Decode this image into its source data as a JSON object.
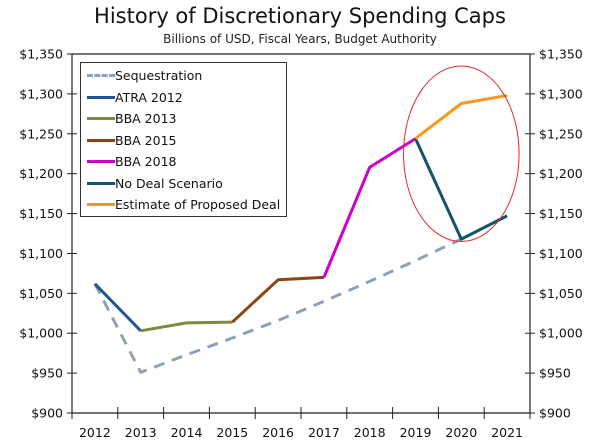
{
  "chart_data": {
    "type": "line",
    "title": "History of Discretionary Spending Caps",
    "subtitle": "Billions of USD, Fiscal Years, Budget Authority",
    "xlabel": "",
    "ylabel": "",
    "categories": [
      "2012",
      "2013",
      "2014",
      "2015",
      "2016",
      "2017",
      "2018",
      "2019",
      "2020",
      "2021"
    ],
    "ylim": [
      900,
      1350
    ],
    "yticks": [
      900,
      950,
      1000,
      1050,
      1100,
      1150,
      1200,
      1250,
      1300,
      1350
    ],
    "ytick_labels": [
      "$900",
      "$950",
      "$1,000",
      "$1,050",
      "$1,100",
      "$1,150",
      "$1,200",
      "$1,250",
      "$1,300",
      "$1,350"
    ],
    "secondary_y_axis": true,
    "grid": false,
    "legend_position": "top-left",
    "series": [
      {
        "name": "Sequestration",
        "color": "#8ba3b8",
        "style": "dashed",
        "values": [
          1062,
          951,
          973,
          994,
          1016,
          1040,
          1065,
          1091,
          1118,
          null
        ]
      },
      {
        "name": "ATRA 2012",
        "color": "#1f5591",
        "style": "solid",
        "values": [
          1062,
          1003,
          null,
          null,
          null,
          null,
          null,
          null,
          null,
          null
        ]
      },
      {
        "name": "BBA 2013",
        "color": "#7f8a3e",
        "style": "solid",
        "values": [
          null,
          1003,
          1013,
          1014,
          null,
          null,
          null,
          null,
          null,
          null
        ]
      },
      {
        "name": "BBA 2015",
        "color": "#8b4513",
        "style": "solid",
        "values": [
          null,
          null,
          null,
          1014,
          1067,
          1070,
          null,
          null,
          null,
          null
        ]
      },
      {
        "name": "BBA 2018",
        "color": "#cc00cc",
        "style": "solid",
        "values": [
          null,
          null,
          null,
          null,
          null,
          1070,
          1208,
          1244,
          null,
          null
        ]
      },
      {
        "name": "No Deal Scenario",
        "color": "#13536b",
        "style": "solid",
        "values": [
          null,
          null,
          null,
          null,
          null,
          null,
          null,
          1244,
          1118,
          1147
        ]
      },
      {
        "name": "Estimate of Proposed Deal",
        "color": "#f7991c",
        "style": "solid",
        "values": [
          null,
          null,
          null,
          null,
          null,
          null,
          null,
          1244,
          1288,
          1298
        ]
      }
    ],
    "annotations": [
      {
        "type": "ellipse",
        "color": "#e8282b",
        "around": "2019-2021 values",
        "x_range": [
          "2019",
          "2021"
        ],
        "y_range": [
          1115,
          1335
        ]
      }
    ]
  }
}
